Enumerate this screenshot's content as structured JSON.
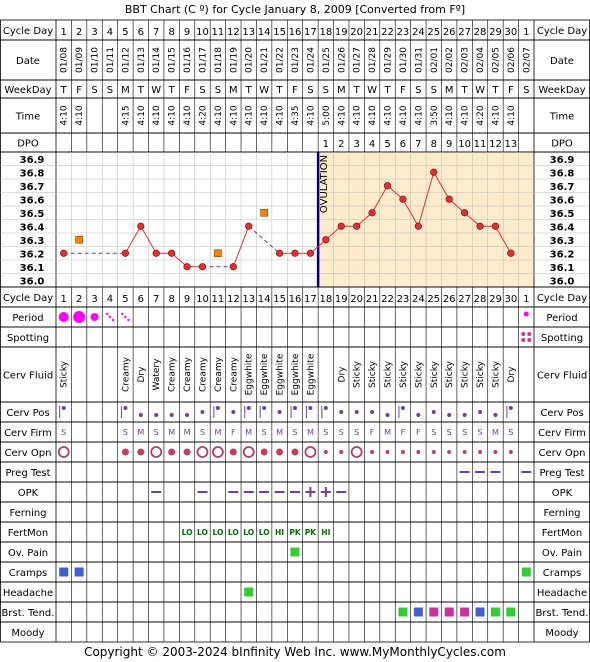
{
  "title": "BBT Chart (C º) for Cycle January 8, 2009  [Converted from Fº]",
  "footer": "Copyright © 2003-2024 bInfinity Web Inc.    www.MyMonthlyCycles.com",
  "colors": {
    "grid": "#000000",
    "fill_pre": "#ffffff",
    "fill_post": "#ffeccc",
    "temp_line": "#e03030",
    "temp_point": "#e03030",
    "excluded_point": "#ff8000",
    "dashed": "#4040e0",
    "ovulation_line": "#000080",
    "period": "#ff00ff",
    "cramps": "#4060d0",
    "green": "#33cc33",
    "pink": "#cc3399",
    "blue": "#4060d0",
    "purple": "#7040a0",
    "fertmon": "#007000"
  },
  "row_labels": {
    "cycle_day": "Cycle Day",
    "date": "Date",
    "weekday": "WeekDay",
    "time": "Time",
    "dpo": "DPO",
    "period": "Period",
    "spotting": "Spotting",
    "cerv_fluid": "Cerv Fluid",
    "cerv_pos": "Cerv Pos",
    "cerv_firm": "Cerv Firm",
    "cerv_opn": "Cerv Opn",
    "preg_test": "Preg Test",
    "opk": "OPK",
    "ferning": "Ferning",
    "fertmon": "FertMon",
    "ov_pain": "Ov. Pain",
    "cramps": "Cramps",
    "headache": "Headache",
    "brst_tend": "Brst. Tend.",
    "moody": "Moody"
  },
  "ovulation_label": "OVULATION",
  "ovulation_after_day": 17,
  "days": [
    1,
    2,
    3,
    4,
    5,
    6,
    7,
    8,
    9,
    10,
    11,
    12,
    13,
    14,
    15,
    16,
    17,
    18,
    19,
    20,
    21,
    22,
    23,
    24,
    25,
    26,
    27,
    28,
    29,
    30,
    1
  ],
  "dates": [
    "01/08",
    "01/09",
    "01/10",
    "01/11",
    "01/12",
    "01/13",
    "01/14",
    "01/15",
    "01/16",
    "01/17",
    "01/18",
    "01/19",
    "01/20",
    "01/21",
    "01/22",
    "01/23",
    "01/24",
    "01/25",
    "01/26",
    "01/27",
    "01/28",
    "01/29",
    "01/30",
    "01/31",
    "02/01",
    "02/02",
    "02/03",
    "02/04",
    "02/05",
    "02/06",
    "02/07"
  ],
  "weekdays": [
    "T",
    "F",
    "S",
    "S",
    "M",
    "T",
    "W",
    "T",
    "F",
    "S",
    "S",
    "M",
    "T",
    "W",
    "T",
    "F",
    "S",
    "S",
    "M",
    "T",
    "W",
    "T",
    "F",
    "S",
    "S",
    "M",
    "T",
    "W",
    "T",
    "F",
    "S"
  ],
  "times": [
    "4:10",
    "4:10",
    "",
    "",
    "4:15",
    "4:10",
    "4:10",
    "4:10",
    "4:10",
    "4:20",
    "4:10",
    "4:10",
    "4:10",
    "4:10",
    "4:10",
    "4:35",
    "4:10",
    "5:00",
    "4:10",
    "4:10",
    "4:10",
    "4:10",
    "4:10",
    "4:10",
    "3:50",
    "4:10",
    "4:10",
    "4:20",
    "4:10",
    "4:10",
    ""
  ],
  "dpo": [
    "",
    "",
    "",
    "",
    "",
    "",
    "",
    "",
    "",
    "",
    "",
    "",
    "",
    "",
    "",
    "",
    "",
    "1",
    "2",
    "3",
    "4",
    "5",
    "6",
    "7",
    "8",
    "9",
    "10",
    "11",
    "12",
    "13",
    ""
  ],
  "temp_labels": [
    "36.9",
    "36.8",
    "36.7",
    "36.6",
    "36.5",
    "36.4",
    "36.3",
    "36.2",
    "36.1",
    "36.0"
  ],
  "chart_data": {
    "type": "line",
    "ylim": [
      36.0,
      36.9
    ],
    "x": [
      1,
      2,
      3,
      4,
      5,
      6,
      7,
      8,
      9,
      10,
      11,
      12,
      13,
      14,
      15,
      16,
      17,
      18,
      19,
      20,
      21,
      22,
      23,
      24,
      25,
      26,
      27,
      28,
      29,
      30
    ],
    "temperatures": [
      36.2,
      null,
      null,
      null,
      36.2,
      36.4,
      36.2,
      36.2,
      36.1,
      36.1,
      null,
      36.1,
      36.4,
      null,
      36.2,
      36.2,
      36.2,
      36.3,
      36.4,
      36.4,
      36.5,
      36.7,
      36.6,
      36.4,
      36.8,
      36.6,
      36.5,
      36.4,
      36.4,
      36.2
    ],
    "excluded": [
      {
        "day": 2,
        "temp": 36.3
      },
      {
        "day": 11,
        "temp": 36.2
      },
      {
        "day": 14,
        "temp": 36.5
      }
    ]
  },
  "cerv_fluid": [
    "Sticky",
    "",
    "",
    "",
    "Creamy",
    "Dry",
    "Watery",
    "Creamy",
    "Creamy",
    "Creamy",
    "Creamy",
    "Creamy",
    "Eggwhite",
    "Eggwhite",
    "Eggwhite",
    "Eggwhite",
    "Eggwhite",
    "",
    "Dry",
    "Sticky",
    "Sticky",
    "Sticky",
    "Sticky",
    "Sticky",
    "Sticky",
    "Sticky",
    "Sticky",
    "Sticky",
    "Sticky",
    "Dry",
    ""
  ],
  "cerv_pos": [
    "hi",
    "",
    "",
    "",
    "hi",
    "lo",
    "lo",
    "lo",
    "lo",
    "mid",
    "hi",
    "mid",
    "hi",
    "hi",
    "mid",
    "hi",
    "hi",
    "hi",
    "mid",
    "mid",
    "mid",
    "lo",
    "hi",
    "lo",
    "mid",
    "lo",
    "lo",
    "mid",
    "lo",
    "hi",
    ""
  ],
  "cerv_firm": [
    "S",
    "",
    "",
    "",
    "S",
    "M",
    "S",
    "M",
    "M",
    "S",
    "M",
    "F",
    "M",
    "S",
    "M",
    "S",
    "M",
    "S",
    "S",
    "S",
    "F",
    "M",
    "F",
    "F",
    "S",
    "S",
    "S",
    "S",
    "M",
    "S",
    ""
  ],
  "cerv_opn": [
    "L",
    "",
    "",
    "",
    "m",
    "m",
    "L",
    "m",
    "m",
    "L",
    "L",
    "m",
    "L",
    "m",
    "m",
    "m",
    "L",
    "s",
    "s",
    "L",
    "s",
    "s",
    "s",
    "s",
    "s",
    "s",
    "s",
    "s",
    "s",
    "s",
    ""
  ],
  "period_marks": [
    "big",
    "big",
    "med",
    "tiny",
    "tiny",
    "",
    "",
    "",
    "",
    "",
    "",
    "",
    "",
    "",
    "",
    "",
    "",
    "",
    "",
    "",
    "",
    "",
    "",
    "",
    "",
    "",
    "",
    "",
    "",
    "",
    "small"
  ],
  "spotting": [
    "",
    "",
    "",
    "",
    "",
    "",
    "",
    "",
    "",
    "",
    "",
    "",
    "",
    "",
    "",
    "",
    "",
    "",
    "",
    "",
    "",
    "",
    "",
    "",
    "",
    "",
    "",
    "",
    "",
    "",
    "dots"
  ],
  "preg_test": [
    "",
    "",
    "",
    "",
    "",
    "",
    "",
    "",
    "",
    "",
    "",
    "",
    "",
    "",
    "",
    "",
    "",
    "",
    "",
    "",
    "",
    "",
    "",
    "",
    "",
    "",
    "neg",
    "neg",
    "neg",
    "",
    "neg"
  ],
  "opk": [
    "",
    "",
    "",
    "",
    "",
    "",
    "neg",
    "",
    "",
    "neg",
    "",
    "neg",
    "neg",
    "neg",
    "neg",
    "neg",
    "pos",
    "pos",
    "neg",
    "",
    "",
    "",
    "",
    "",
    "",
    "",
    "",
    "",
    "",
    "",
    ""
  ],
  "fertmon": [
    "",
    "",
    "",
    "",
    "",
    "",
    "",
    "",
    "LO",
    "LO",
    "LO",
    "LO",
    "LO",
    "LO",
    "HI",
    "PK",
    "PK",
    "HI",
    "",
    "",
    "",
    "",
    "",
    "",
    "",
    "",
    "",
    "",
    "",
    "",
    ""
  ],
  "ov_pain": [
    16
  ],
  "cramps": [
    1,
    2,
    31
  ],
  "headache": [
    13
  ],
  "brst_tend": [
    {
      "day": 23,
      "c": "green"
    },
    {
      "day": 24,
      "c": "blue"
    },
    {
      "day": 25,
      "c": "pink"
    },
    {
      "day": 26,
      "c": "pink"
    },
    {
      "day": 27,
      "c": "pink"
    },
    {
      "day": 28,
      "c": "blue"
    },
    {
      "day": 29,
      "c": "green"
    },
    {
      "day": 30,
      "c": "green"
    }
  ]
}
